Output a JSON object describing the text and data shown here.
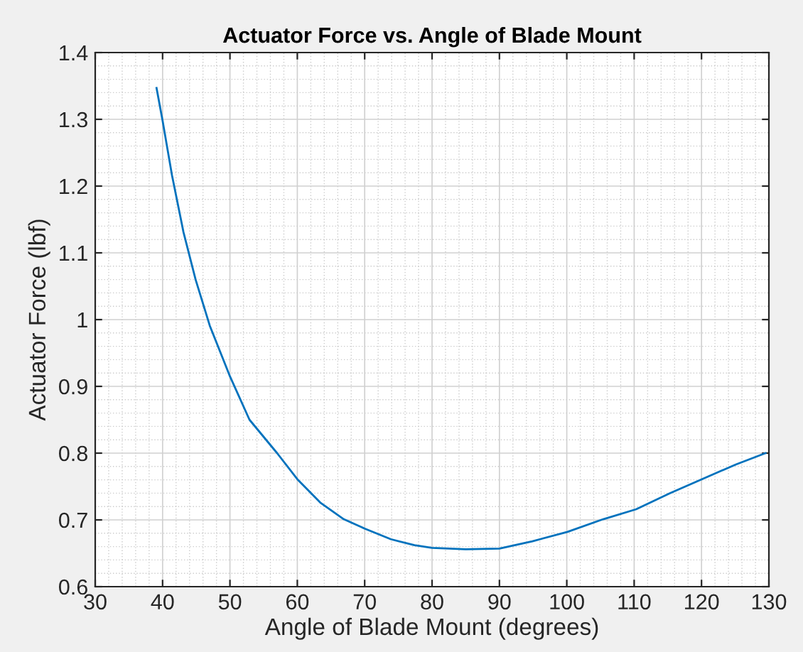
{
  "chart_data": {
    "type": "line",
    "title": "Actuator Force vs. Angle of Blade Mount",
    "xlabel": "Angle of Blade Mount (degrees)",
    "ylabel": "Actuator Force (lbf)",
    "series": [
      {
        "color": "#0072bd",
        "x": [
          39.1,
          40,
          41.4,
          43.1,
          44.9,
          47.0,
          50,
          52.9,
          57.0,
          60,
          63.4,
          66.9,
          70,
          73.9,
          77.4,
          80,
          85,
          90,
          94.9,
          100.1,
          105.4,
          110.3,
          115.3,
          120.3,
          125.1,
          129.5
        ],
        "values": [
          1.347,
          1.298,
          1.216,
          1.131,
          1.06,
          0.991,
          0.915,
          0.85,
          0.8,
          0.761,
          0.726,
          0.701,
          0.687,
          0.671,
          0.662,
          0.658,
          0.656,
          0.657,
          0.668,
          0.682,
          0.701,
          0.716,
          0.74,
          0.762,
          0.783,
          0.8
        ]
      }
    ],
    "xlim": [
      30,
      130
    ],
    "ylim": [
      0.6,
      1.4
    ],
    "xticks": [
      30,
      40,
      50,
      60,
      70,
      80,
      90,
      100,
      110,
      120,
      130
    ],
    "yticks": [
      {
        "value": 0.6,
        "label": "0.6"
      },
      {
        "value": 0.7,
        "label": "0.7"
      },
      {
        "value": 0.8,
        "label": "0.8"
      },
      {
        "value": 0.9,
        "label": "0.9"
      },
      {
        "value": 1.0,
        "label": "1"
      },
      {
        "value": 1.1,
        "label": "1.1"
      },
      {
        "value": 1.2,
        "label": "1.2"
      },
      {
        "value": 1.3,
        "label": "1.3"
      },
      {
        "value": 1.4,
        "label": "1.4"
      }
    ],
    "grid": true,
    "legend": false,
    "marker": "none",
    "line_style": "solid"
  }
}
